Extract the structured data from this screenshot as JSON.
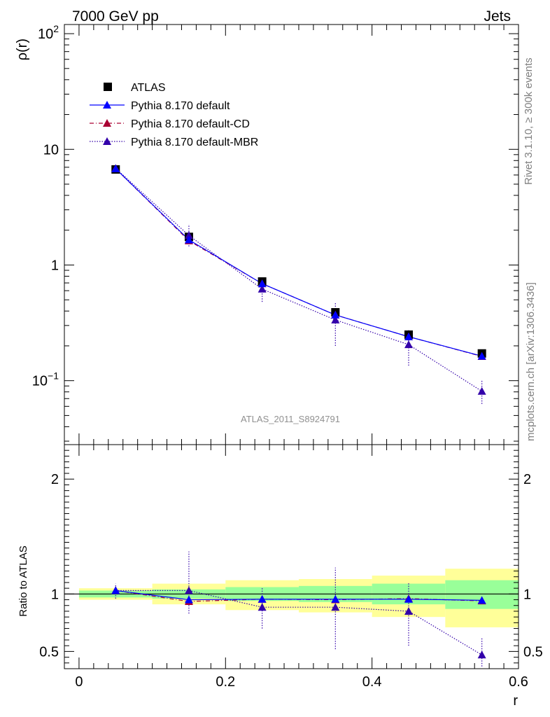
{
  "header": {
    "left": "7000 GeV pp",
    "right": "Jets"
  },
  "side_labels": {
    "rivet": "Rivet 3.1.10, ≥ 300k events",
    "mcplots": "mcplots.cern.ch [arXiv:1306.3436]"
  },
  "analysis_label": "ATLAS_2011_S8924791",
  "colors": {
    "atlas": "#000000",
    "default": "#0000ff",
    "cd": "#aa0033",
    "mbr": "#3300aa",
    "band_inner": "#99ff99",
    "band_outer": "#ffff99"
  },
  "chart_data": [
    {
      "type": "scatter",
      "panel": "main",
      "ylabel": "ρ(r)",
      "yscale": "log",
      "ylim": [
        0.028,
        120
      ],
      "xlim": [
        -0.02,
        0.6
      ],
      "y_ticks": [
        {
          "value": 0.1,
          "base": "10",
          "exp": "−1"
        },
        {
          "value": 1,
          "base": "1",
          "exp": ""
        },
        {
          "value": 10,
          "base": "10",
          "exp": ""
        },
        {
          "value": 100,
          "base": "10",
          "exp": "2"
        }
      ],
      "legend_position": "top-left",
      "x": [
        0.05,
        0.15,
        0.25,
        0.35,
        0.45,
        0.55
      ],
      "series": [
        {
          "name": "ATLAS",
          "key": "atlas",
          "marker": "square",
          "values": [
            6.7,
            1.75,
            0.72,
            0.39,
            0.25,
            0.172
          ],
          "err_low": [
            6.7,
            1.72,
            0.705,
            0.38,
            0.245,
            0.168
          ],
          "err_high": [
            6.7,
            1.78,
            0.735,
            0.4,
            0.255,
            0.176
          ]
        },
        {
          "name": "Pythia 8.170 default",
          "key": "default",
          "line": "solid",
          "marker": "triangle",
          "values": [
            6.8,
            1.65,
            0.69,
            0.37,
            0.24,
            0.163
          ]
        },
        {
          "name": "Pythia 8.170 default-CD",
          "key": "cd",
          "line": "dashdot",
          "marker": "triangle",
          "values": [
            6.8,
            1.62,
            0.69,
            0.37,
            0.24,
            0.162
          ]
        },
        {
          "name": "Pythia 8.170 default-MBR",
          "key": "mbr",
          "line": "dotted",
          "marker": "triangle",
          "values": [
            6.85,
            1.8,
            0.62,
            0.335,
            0.205,
            0.081
          ],
          "err_low": [
            6.4,
            1.45,
            0.48,
            0.2,
            0.135,
            0.063
          ],
          "err_high": [
            7.3,
            2.25,
            0.76,
            0.47,
            0.28,
            0.102
          ]
        }
      ]
    },
    {
      "type": "scatter",
      "panel": "ratio",
      "xlabel": "r",
      "ylabel": "Ratio to ATLAS",
      "ylim": [
        0.35,
        2.3
      ],
      "xlim": [
        -0.02,
        0.6
      ],
      "x_ticks": [
        {
          "value": 0,
          "label": "0"
        },
        {
          "value": 0.2,
          "label": "0.2"
        },
        {
          "value": 0.4,
          "label": "0.4"
        },
        {
          "value": 0.6,
          "label": "0.6"
        }
      ],
      "y_ticks": [
        {
          "value": 0.5,
          "label": "0.5"
        },
        {
          "value": 1,
          "label": "1"
        },
        {
          "value": 2,
          "label": "2"
        }
      ],
      "bands": [
        {
          "x0": 0.0,
          "x1": 0.1,
          "inner": [
            0.97,
            1.03
          ],
          "outer": [
            0.95,
            1.05
          ]
        },
        {
          "x0": 0.1,
          "x1": 0.2,
          "inner": [
            0.96,
            1.04
          ],
          "outer": [
            0.91,
            1.09
          ]
        },
        {
          "x0": 0.2,
          "x1": 0.3,
          "inner": [
            0.94,
            1.06
          ],
          "outer": [
            0.86,
            1.12
          ]
        },
        {
          "x0": 0.3,
          "x1": 0.4,
          "inner": [
            0.93,
            1.07
          ],
          "outer": [
            0.84,
            1.13
          ]
        },
        {
          "x0": 0.4,
          "x1": 0.5,
          "inner": [
            0.91,
            1.09
          ],
          "outer": [
            0.8,
            1.16
          ]
        },
        {
          "x0": 0.5,
          "x1": 0.6,
          "inner": [
            0.87,
            1.12
          ],
          "outer": [
            0.71,
            1.22
          ]
        }
      ],
      "x": [
        0.05,
        0.15,
        0.25,
        0.35,
        0.45,
        0.55
      ],
      "series": [
        {
          "name": "Pythia 8.170 default",
          "key": "default",
          "line": "solid",
          "values": [
            1.03,
            0.95,
            0.955,
            0.955,
            0.955,
            0.945
          ]
        },
        {
          "name": "Pythia 8.170 default-CD",
          "key": "cd",
          "line": "dashdot",
          "values": [
            1.03,
            0.935,
            0.955,
            0.95,
            0.96,
            0.94
          ]
        },
        {
          "name": "Pythia 8.170 default-MBR",
          "key": "mbr",
          "line": "dotted",
          "values": [
            1.03,
            1.03,
            0.885,
            0.885,
            0.85,
            0.47
          ],
          "err_low": [
            0.96,
            0.83,
            0.7,
            0.52,
            0.55,
            0.37
          ],
          "err_high": [
            1.09,
            1.37,
            1.05,
            1.23,
            1.1,
            0.62
          ]
        }
      ]
    }
  ]
}
